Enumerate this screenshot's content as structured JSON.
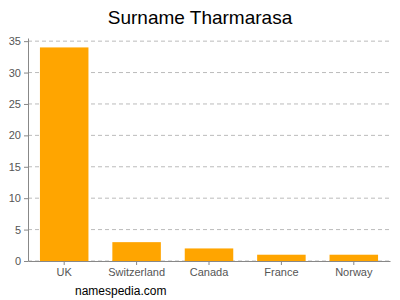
{
  "chart_data": {
    "type": "bar",
    "title": "Surname Tharmarasa",
    "categories": [
      "UK",
      "Switzerland",
      "Canada",
      "France",
      "Norway"
    ],
    "values": [
      34,
      3,
      2,
      1,
      1
    ],
    "color": "#ffa500",
    "ylim": [
      0,
      35.5
    ],
    "yticks": [
      0,
      5,
      10,
      15,
      20,
      25,
      30,
      35
    ],
    "grid": true,
    "source": "namespedia.com"
  }
}
